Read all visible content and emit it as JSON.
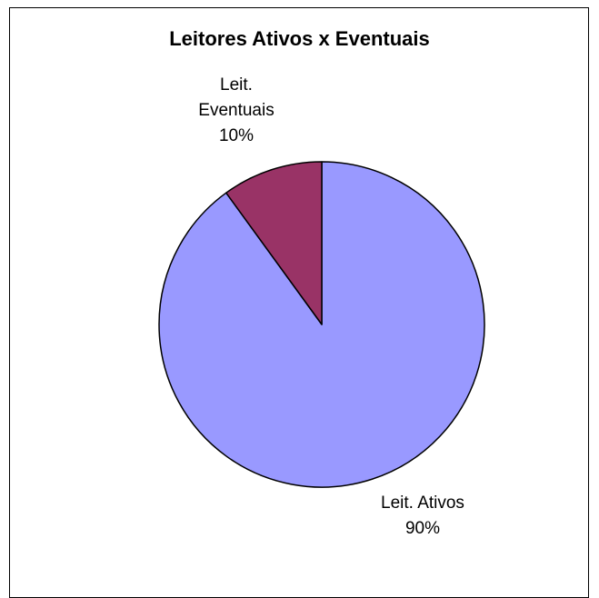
{
  "chart_data": {
    "type": "pie",
    "title": "Leitores Ativos x Eventuais",
    "slices": [
      {
        "name": "Leit. Ativos",
        "percent_label": "90%",
        "value": 90,
        "color": "#9999ff"
      },
      {
        "name": "Leit. Eventuais",
        "percent_label": "10%",
        "value": 10,
        "color": "#993366"
      }
    ],
    "legend": "none",
    "start_angle": "12 o'clock",
    "direction": "counter-clockwise for small slice"
  }
}
